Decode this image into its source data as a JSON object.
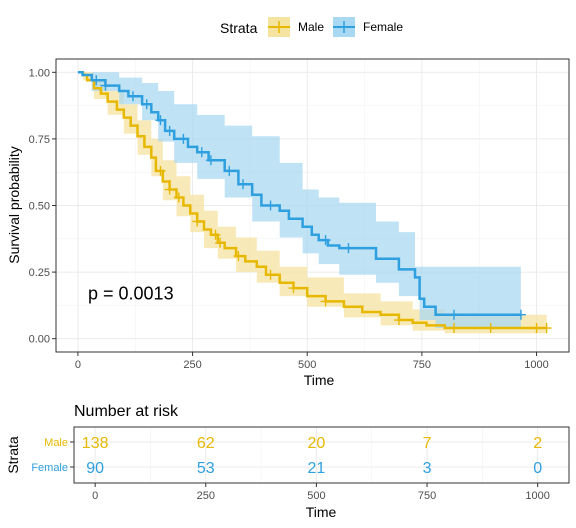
{
  "legend": {
    "title": "Strata",
    "entries": [
      {
        "label": "Male",
        "color": "#E7B800"
      },
      {
        "label": "Female",
        "color": "#2E9FDF"
      }
    ]
  },
  "chart_data": {
    "type": "line",
    "subtype": "kaplan-meier",
    "xlabel": "Time",
    "ylabel": "Survival probability",
    "xlim": [
      0,
      1022
    ],
    "ylim": [
      0,
      1
    ],
    "xticks": [
      0,
      250,
      500,
      750,
      1000
    ],
    "yticks": [
      0,
      0.25,
      0.5,
      0.75,
      1
    ],
    "ytick_labels": [
      "0.00",
      "0.25",
      "0.50",
      "0.75",
      "1.00"
    ],
    "grid": true,
    "legend_position": "top",
    "annotation": "p = 0.0013",
    "series": [
      {
        "name": "Male",
        "color": "#E7B800",
        "ci_color": "#F5E3A0",
        "curve": [
          [
            0,
            1.0
          ],
          [
            5,
            1.0
          ],
          [
            11,
            0.99
          ],
          [
            20,
            0.97
          ],
          [
            35,
            0.94
          ],
          [
            50,
            0.92
          ],
          [
            65,
            0.89
          ],
          [
            85,
            0.86
          ],
          [
            100,
            0.83
          ],
          [
            115,
            0.8
          ],
          [
            130,
            0.76
          ],
          [
            145,
            0.72
          ],
          [
            160,
            0.68
          ],
          [
            170,
            0.63
          ],
          [
            185,
            0.59
          ],
          [
            200,
            0.56
          ],
          [
            215,
            0.53
          ],
          [
            230,
            0.5
          ],
          [
            245,
            0.47
          ],
          [
            260,
            0.44
          ],
          [
            275,
            0.41
          ],
          [
            290,
            0.39
          ],
          [
            305,
            0.36
          ],
          [
            320,
            0.34
          ],
          [
            345,
            0.31
          ],
          [
            365,
            0.29
          ],
          [
            390,
            0.27
          ],
          [
            410,
            0.24
          ],
          [
            440,
            0.21
          ],
          [
            470,
            0.19
          ],
          [
            500,
            0.16
          ],
          [
            540,
            0.14
          ],
          [
            580,
            0.12
          ],
          [
            620,
            0.1
          ],
          [
            660,
            0.09
          ],
          [
            700,
            0.07
          ],
          [
            730,
            0.06
          ],
          [
            760,
            0.05
          ],
          [
            800,
            0.04
          ],
          [
            900,
            0.04
          ],
          [
            1022,
            0.04
          ]
        ],
        "ci_lower": [
          [
            0,
            1.0
          ],
          [
            11,
            0.97
          ],
          [
            35,
            0.9
          ],
          [
            65,
            0.84
          ],
          [
            100,
            0.77
          ],
          [
            130,
            0.69
          ],
          [
            160,
            0.61
          ],
          [
            185,
            0.52
          ],
          [
            215,
            0.46
          ],
          [
            245,
            0.4
          ],
          [
            275,
            0.34
          ],
          [
            305,
            0.3
          ],
          [
            345,
            0.25
          ],
          [
            390,
            0.21
          ],
          [
            440,
            0.16
          ],
          [
            500,
            0.12
          ],
          [
            580,
            0.08
          ],
          [
            660,
            0.05
          ],
          [
            730,
            0.03
          ],
          [
            800,
            0.02
          ],
          [
            1022,
            0.01
          ]
        ],
        "ci_upper": [
          [
            0,
            1.0
          ],
          [
            11,
            1.0
          ],
          [
            35,
            0.97
          ],
          [
            65,
            0.93
          ],
          [
            100,
            0.88
          ],
          [
            130,
            0.82
          ],
          [
            160,
            0.75
          ],
          [
            185,
            0.67
          ],
          [
            215,
            0.61
          ],
          [
            245,
            0.54
          ],
          [
            275,
            0.48
          ],
          [
            305,
            0.42
          ],
          [
            345,
            0.38
          ],
          [
            390,
            0.33
          ],
          [
            440,
            0.27
          ],
          [
            500,
            0.23
          ],
          [
            580,
            0.17
          ],
          [
            660,
            0.14
          ],
          [
            730,
            0.11
          ],
          [
            800,
            0.09
          ],
          [
            1022,
            0.08
          ]
        ],
        "censor_x": [
          180,
          200,
          220,
          260,
          300,
          310,
          350,
          420,
          470,
          540,
          700,
          820,
          900,
          1000,
          1022
        ]
      },
      {
        "name": "Female",
        "color": "#2E9FDF",
        "ci_color": "#A9D8F2",
        "curve": [
          [
            0,
            1.0
          ],
          [
            10,
            0.99
          ],
          [
            30,
            0.97
          ],
          [
            60,
            0.95
          ],
          [
            90,
            0.93
          ],
          [
            110,
            0.91
          ],
          [
            140,
            0.88
          ],
          [
            160,
            0.85
          ],
          [
            175,
            0.82
          ],
          [
            190,
            0.78
          ],
          [
            210,
            0.75
          ],
          [
            240,
            0.72
          ],
          [
            260,
            0.7
          ],
          [
            285,
            0.67
          ],
          [
            320,
            0.63
          ],
          [
            350,
            0.58
          ],
          [
            380,
            0.54
          ],
          [
            400,
            0.5
          ],
          [
            440,
            0.48
          ],
          [
            460,
            0.45
          ],
          [
            490,
            0.42
          ],
          [
            510,
            0.39
          ],
          [
            525,
            0.37
          ],
          [
            545,
            0.35
          ],
          [
            570,
            0.34
          ],
          [
            645,
            0.34
          ],
          [
            650,
            0.3
          ],
          [
            700,
            0.26
          ],
          [
            735,
            0.23
          ],
          [
            745,
            0.15
          ],
          [
            755,
            0.12
          ],
          [
            780,
            0.09
          ],
          [
            966,
            0.09
          ]
        ],
        "ci_lower": [
          [
            0,
            1.0
          ],
          [
            30,
            0.93
          ],
          [
            90,
            0.88
          ],
          [
            140,
            0.82
          ],
          [
            175,
            0.74
          ],
          [
            210,
            0.66
          ],
          [
            260,
            0.6
          ],
          [
            320,
            0.53
          ],
          [
            380,
            0.44
          ],
          [
            440,
            0.38
          ],
          [
            490,
            0.32
          ],
          [
            525,
            0.28
          ],
          [
            570,
            0.24
          ],
          [
            650,
            0.21
          ],
          [
            700,
            0.16
          ],
          [
            745,
            0.07
          ],
          [
            780,
            0.04
          ],
          [
            966,
            0.04
          ]
        ],
        "ci_upper": [
          [
            0,
            1.0
          ],
          [
            30,
            1.0
          ],
          [
            90,
            0.98
          ],
          [
            140,
            0.96
          ],
          [
            175,
            0.93
          ],
          [
            210,
            0.88
          ],
          [
            260,
            0.84
          ],
          [
            320,
            0.8
          ],
          [
            380,
            0.76
          ],
          [
            440,
            0.66
          ],
          [
            490,
            0.56
          ],
          [
            525,
            0.53
          ],
          [
            570,
            0.51
          ],
          [
            650,
            0.44
          ],
          [
            700,
            0.4
          ],
          [
            735,
            0.27
          ],
          [
            966,
            0.27
          ]
        ],
        "censor_x": [
          40,
          60,
          120,
          150,
          180,
          200,
          230,
          270,
          290,
          330,
          360,
          420,
          540,
          590,
          820,
          966
        ]
      }
    ],
    "risk_table": {
      "title": "Number at risk",
      "ylabel": "Strata",
      "xlabel": "Time",
      "times": [
        0,
        250,
        500,
        750,
        1000
      ],
      "rows": [
        {
          "label": "Male",
          "color": "#E7B800",
          "values": [
            "138",
            "62",
            "20",
            "7",
            "2"
          ]
        },
        {
          "label": "Female",
          "color": "#2E9FDF",
          "values": [
            "90",
            "53",
            "21",
            "3",
            "0"
          ]
        }
      ]
    }
  }
}
